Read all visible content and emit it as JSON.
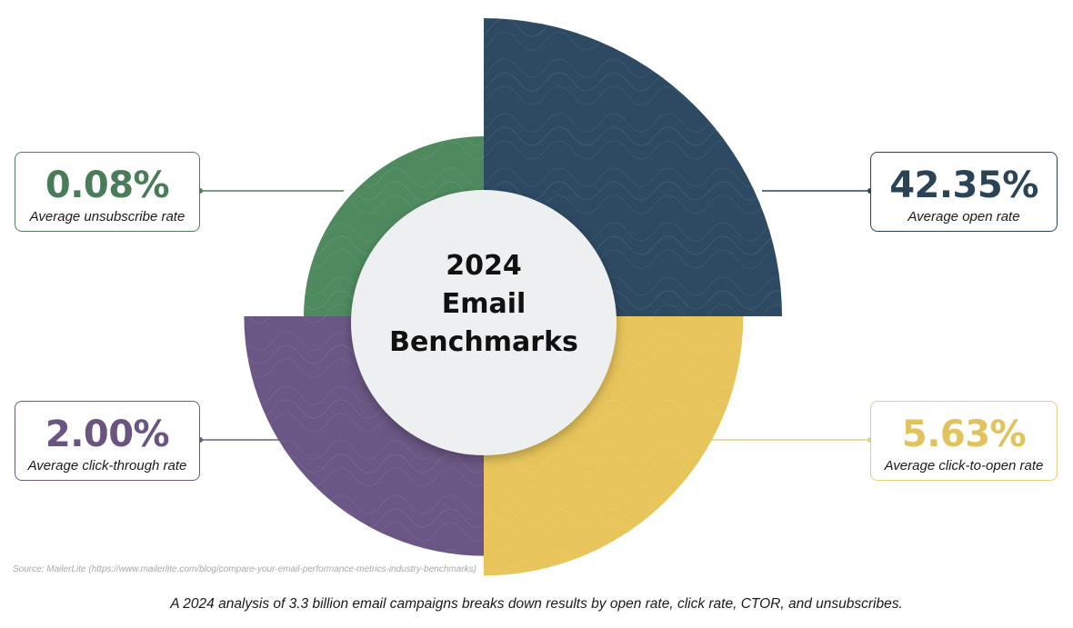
{
  "chart_data": {
    "type": "pie",
    "title": "2024 Email Benchmarks",
    "title_lines": [
      "2024",
      "Email",
      "Benchmarks"
    ],
    "slices": [
      {
        "id": "open",
        "label": "Average open rate",
        "value": 42.35,
        "display": "42.35%",
        "color": "#2e4a63",
        "position": "top-right"
      },
      {
        "id": "ctor",
        "label": "Average click-to-open rate",
        "value": 5.63,
        "display": "5.63%",
        "color": "#e8c55a",
        "position": "bottom-right"
      },
      {
        "id": "ctr",
        "label": "Average click-through rate",
        "value": 2.0,
        "display": "2.00%",
        "color": "#6b5785",
        "position": "bottom-left"
      },
      {
        "id": "unsub",
        "label": "Average unsubscribe rate",
        "value": 0.08,
        "display": "0.08%",
        "color": "#4f8a5f",
        "position": "top-left"
      }
    ]
  },
  "cards": {
    "unsub": {
      "value": "0.08%",
      "label": "Average unsubscribe rate"
    },
    "open": {
      "value": "42.35%",
      "label": "Average open rate"
    },
    "ctr": {
      "value": "2.00%",
      "label": "Average click-through rate"
    },
    "ctor": {
      "value": "5.63%",
      "label": "Average click-to-open rate"
    }
  },
  "source": "Source: MailerLite (https://www.mailerlite.com/blog/compare-your-email-performance-metrics-industry-benchmarks)",
  "caption": "A 2024 analysis of 3.3 billion email campaigns breaks down results by open rate, click rate, CTOR, and unsubscribes."
}
